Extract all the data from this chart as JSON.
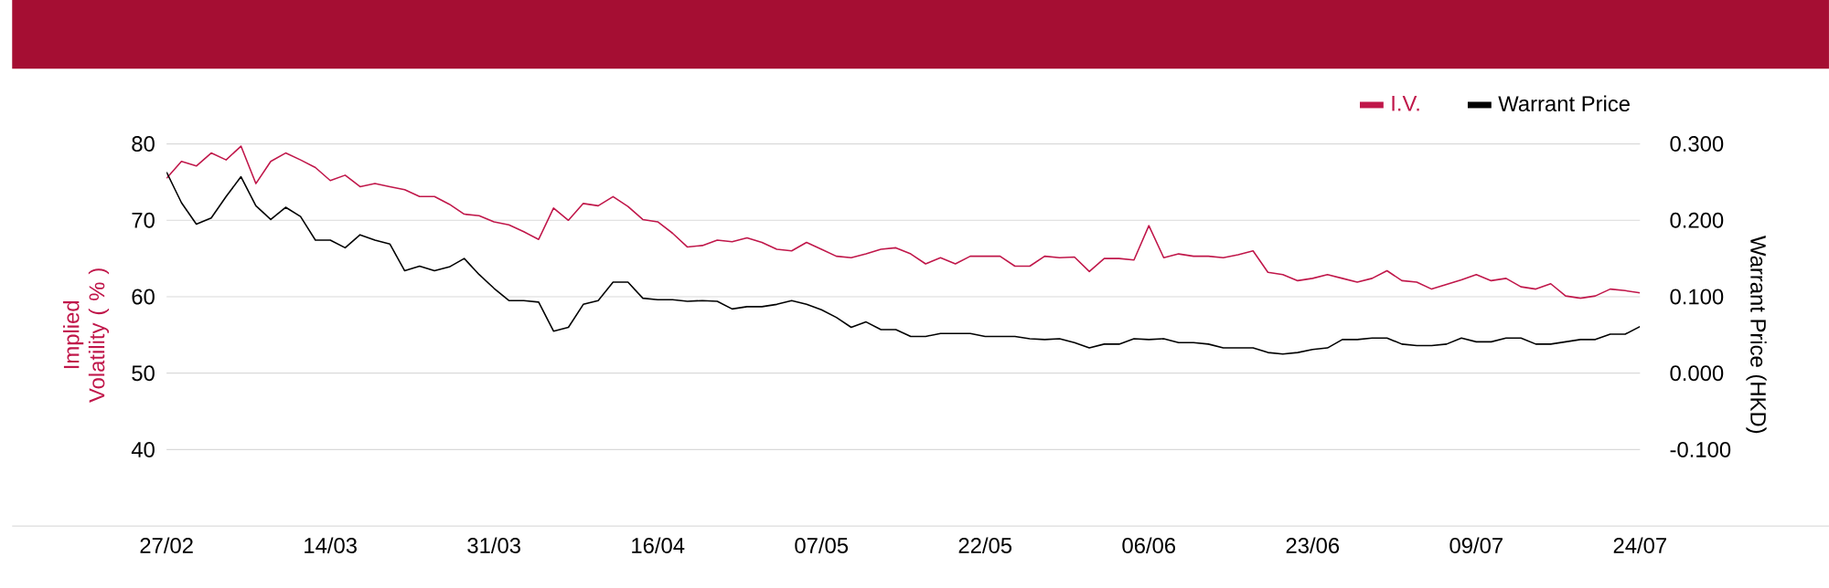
{
  "chart_data": {
    "type": "line",
    "categories": [
      "27/02",
      null,
      null,
      null,
      null,
      null,
      null,
      null,
      null,
      null,
      null,
      "14/03",
      null,
      null,
      null,
      null,
      null,
      null,
      null,
      null,
      null,
      null,
      "31/03",
      null,
      null,
      null,
      null,
      null,
      null,
      null,
      null,
      null,
      null,
      "16/04",
      null,
      null,
      null,
      null,
      null,
      null,
      null,
      null,
      null,
      null,
      "07/05",
      null,
      null,
      null,
      null,
      null,
      null,
      null,
      null,
      null,
      null,
      "22/05",
      null,
      null,
      null,
      null,
      null,
      null,
      null,
      null,
      null,
      null,
      "06/06",
      null,
      null,
      null,
      null,
      null,
      null,
      null,
      null,
      null,
      null,
      "23/06",
      null,
      null,
      null,
      null,
      null,
      null,
      null,
      null,
      null,
      null,
      "09/07",
      null,
      null,
      null,
      null,
      null,
      null,
      null,
      null,
      null,
      null,
      "24/07"
    ],
    "series": [
      {
        "name": "I.V.",
        "color": "#c0174a",
        "values": [
          75.5,
          77.7,
          77.1,
          78.8,
          77.9,
          79.7,
          74.8,
          77.7,
          78.8,
          77.9,
          76.9,
          75.2,
          75.9,
          74.4,
          74.8,
          74.4,
          74.0,
          73.1,
          73.1,
          72.1,
          70.8,
          70.6,
          69.8,
          69.4,
          68.5,
          67.5,
          71.6,
          70.0,
          72.2,
          71.9,
          73.1,
          71.8,
          70.1,
          69.8,
          68.3,
          66.5,
          66.7,
          67.4,
          67.2,
          67.7,
          67.1,
          66.2,
          66.0,
          67.1,
          66.2,
          65.3,
          65.1,
          65.6,
          66.2,
          66.4,
          65.6,
          64.3,
          65.1,
          64.3,
          65.3,
          65.3,
          65.3,
          64.0,
          64.0,
          65.3,
          65.1,
          65.2,
          63.3,
          65.0,
          65.0,
          64.8,
          69.3,
          65.1,
          65.6,
          65.3,
          65.3,
          65.1,
          65.5,
          66.0,
          63.2,
          62.9,
          62.1,
          62.4,
          62.9,
          62.4,
          61.9,
          62.4,
          63.4,
          62.1,
          61.9,
          61.0,
          61.6,
          62.2,
          62.9,
          62.1,
          62.4,
          61.3,
          61.0,
          61.7,
          60.1,
          59.8,
          60.1,
          61.0,
          60.8,
          60.5
        ]
      },
      {
        "name": "Warrant Price",
        "color": "#000000",
        "axis": "y2",
        "values": [
          0.263,
          0.223,
          0.195,
          0.203,
          0.231,
          0.257,
          0.219,
          0.201,
          0.217,
          0.205,
          0.174,
          0.174,
          0.164,
          0.181,
          0.174,
          0.169,
          0.134,
          0.14,
          0.134,
          0.139,
          0.15,
          0.129,
          0.111,
          0.095,
          0.095,
          0.093,
          0.055,
          0.06,
          0.09,
          0.095,
          0.119,
          0.119,
          0.098,
          0.096,
          0.096,
          0.094,
          0.095,
          0.094,
          0.084,
          0.087,
          0.087,
          0.09,
          0.095,
          0.09,
          0.083,
          0.073,
          0.06,
          0.067,
          0.057,
          0.057,
          0.048,
          0.048,
          0.052,
          0.052,
          0.052,
          0.048,
          0.048,
          0.048,
          0.045,
          0.044,
          0.045,
          0.04,
          0.033,
          0.038,
          0.038,
          0.045,
          0.044,
          0.045,
          0.04,
          0.04,
          0.038,
          0.033,
          0.033,
          0.033,
          0.027,
          0.025,
          0.027,
          0.031,
          0.033,
          0.044,
          0.044,
          0.046,
          0.046,
          0.038,
          0.036,
          0.036,
          0.038,
          0.046,
          0.041,
          0.041,
          0.046,
          0.046,
          0.038,
          0.038,
          0.041,
          0.044,
          0.044,
          0.051,
          0.051,
          0.061
        ]
      }
    ],
    "ylabel": "Implied Volatility ( % )",
    "y2label": "Warrant Price (HKD)",
    "ylim": [
      30,
      80
    ],
    "yticks": [
      40,
      50,
      60,
      70,
      80
    ],
    "y2lim": [
      -0.2,
      0.3
    ],
    "y2ticks": [
      {
        "value": -0.1,
        "label": "-0.100"
      },
      {
        "value": 0,
        "label": "0.000"
      },
      {
        "value": 0.1,
        "label": "0.100"
      },
      {
        "value": 0.2,
        "label": "0.200"
      },
      {
        "value": 0.3,
        "label": "0.300"
      }
    ],
    "grid": "y",
    "legend": "top right"
  }
}
